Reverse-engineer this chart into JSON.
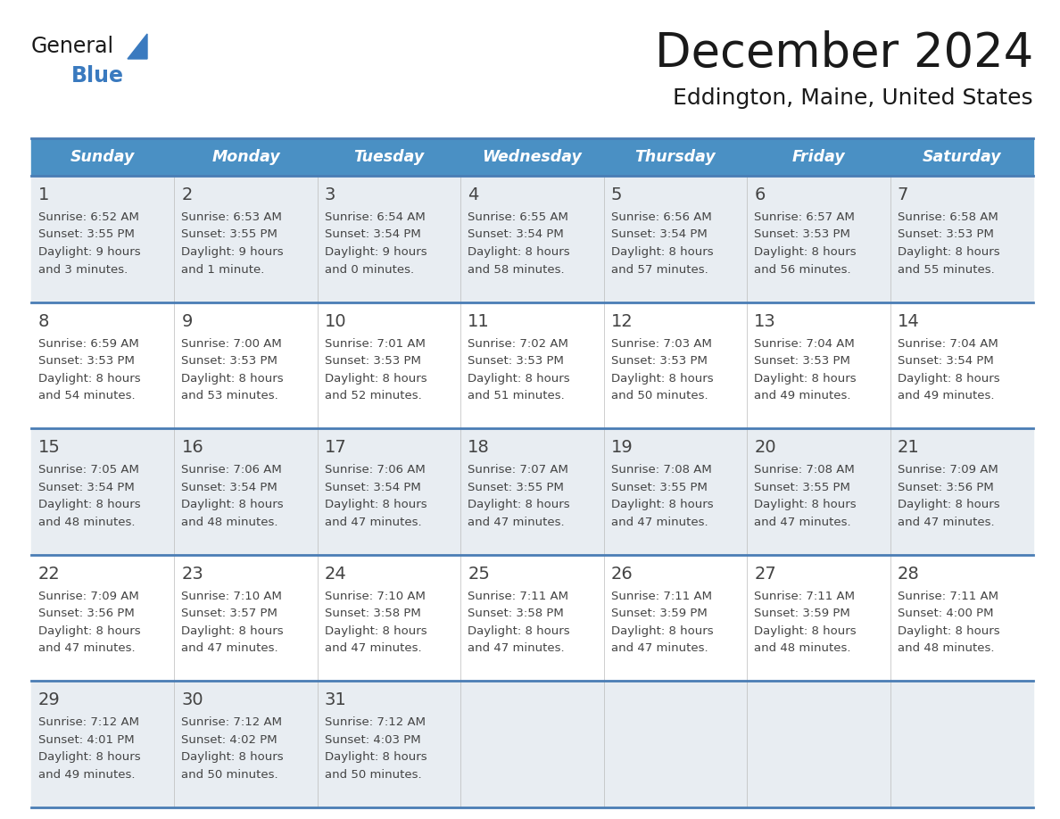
{
  "title": "December 2024",
  "subtitle": "Eddington, Maine, United States",
  "header_color": "#4A90C4",
  "header_text_color": "#FFFFFF",
  "day_names": [
    "Sunday",
    "Monday",
    "Tuesday",
    "Wednesday",
    "Thursday",
    "Friday",
    "Saturday"
  ],
  "grid_line_color": "#4A7DB5",
  "cell_bg_light": "#E8EDF2",
  "cell_bg_white": "#FFFFFF",
  "text_color": "#444444",
  "title_color": "#1a1a1a",
  "logo_color_general": "#1a1a1a",
  "logo_color_blue": "#3a7abf",
  "logo_triangle_color": "#3a7abf",
  "calendar_data": [
    [
      {
        "day": 1,
        "sunrise": "6:52 AM",
        "sunset": "3:55 PM",
        "daylight_line1": "9 hours",
        "daylight_line2": "and 3 minutes."
      },
      {
        "day": 2,
        "sunrise": "6:53 AM",
        "sunset": "3:55 PM",
        "daylight_line1": "9 hours",
        "daylight_line2": "and 1 minute."
      },
      {
        "day": 3,
        "sunrise": "6:54 AM",
        "sunset": "3:54 PM",
        "daylight_line1": "9 hours",
        "daylight_line2": "and 0 minutes."
      },
      {
        "day": 4,
        "sunrise": "6:55 AM",
        "sunset": "3:54 PM",
        "daylight_line1": "8 hours",
        "daylight_line2": "and 58 minutes."
      },
      {
        "day": 5,
        "sunrise": "6:56 AM",
        "sunset": "3:54 PM",
        "daylight_line1": "8 hours",
        "daylight_line2": "and 57 minutes."
      },
      {
        "day": 6,
        "sunrise": "6:57 AM",
        "sunset": "3:53 PM",
        "daylight_line1": "8 hours",
        "daylight_line2": "and 56 minutes."
      },
      {
        "day": 7,
        "sunrise": "6:58 AM",
        "sunset": "3:53 PM",
        "daylight_line1": "8 hours",
        "daylight_line2": "and 55 minutes."
      }
    ],
    [
      {
        "day": 8,
        "sunrise": "6:59 AM",
        "sunset": "3:53 PM",
        "daylight_line1": "8 hours",
        "daylight_line2": "and 54 minutes."
      },
      {
        "day": 9,
        "sunrise": "7:00 AM",
        "sunset": "3:53 PM",
        "daylight_line1": "8 hours",
        "daylight_line2": "and 53 minutes."
      },
      {
        "day": 10,
        "sunrise": "7:01 AM",
        "sunset": "3:53 PM",
        "daylight_line1": "8 hours",
        "daylight_line2": "and 52 minutes."
      },
      {
        "day": 11,
        "sunrise": "7:02 AM",
        "sunset": "3:53 PM",
        "daylight_line1": "8 hours",
        "daylight_line2": "and 51 minutes."
      },
      {
        "day": 12,
        "sunrise": "7:03 AM",
        "sunset": "3:53 PM",
        "daylight_line1": "8 hours",
        "daylight_line2": "and 50 minutes."
      },
      {
        "day": 13,
        "sunrise": "7:04 AM",
        "sunset": "3:53 PM",
        "daylight_line1": "8 hours",
        "daylight_line2": "and 49 minutes."
      },
      {
        "day": 14,
        "sunrise": "7:04 AM",
        "sunset": "3:54 PM",
        "daylight_line1": "8 hours",
        "daylight_line2": "and 49 minutes."
      }
    ],
    [
      {
        "day": 15,
        "sunrise": "7:05 AM",
        "sunset": "3:54 PM",
        "daylight_line1": "8 hours",
        "daylight_line2": "and 48 minutes."
      },
      {
        "day": 16,
        "sunrise": "7:06 AM",
        "sunset": "3:54 PM",
        "daylight_line1": "8 hours",
        "daylight_line2": "and 48 minutes."
      },
      {
        "day": 17,
        "sunrise": "7:06 AM",
        "sunset": "3:54 PM",
        "daylight_line1": "8 hours",
        "daylight_line2": "and 47 minutes."
      },
      {
        "day": 18,
        "sunrise": "7:07 AM",
        "sunset": "3:55 PM",
        "daylight_line1": "8 hours",
        "daylight_line2": "and 47 minutes."
      },
      {
        "day": 19,
        "sunrise": "7:08 AM",
        "sunset": "3:55 PM",
        "daylight_line1": "8 hours",
        "daylight_line2": "and 47 minutes."
      },
      {
        "day": 20,
        "sunrise": "7:08 AM",
        "sunset": "3:55 PM",
        "daylight_line1": "8 hours",
        "daylight_line2": "and 47 minutes."
      },
      {
        "day": 21,
        "sunrise": "7:09 AM",
        "sunset": "3:56 PM",
        "daylight_line1": "8 hours",
        "daylight_line2": "and 47 minutes."
      }
    ],
    [
      {
        "day": 22,
        "sunrise": "7:09 AM",
        "sunset": "3:56 PM",
        "daylight_line1": "8 hours",
        "daylight_line2": "and 47 minutes."
      },
      {
        "day": 23,
        "sunrise": "7:10 AM",
        "sunset": "3:57 PM",
        "daylight_line1": "8 hours",
        "daylight_line2": "and 47 minutes."
      },
      {
        "day": 24,
        "sunrise": "7:10 AM",
        "sunset": "3:58 PM",
        "daylight_line1": "8 hours",
        "daylight_line2": "and 47 minutes."
      },
      {
        "day": 25,
        "sunrise": "7:11 AM",
        "sunset": "3:58 PM",
        "daylight_line1": "8 hours",
        "daylight_line2": "and 47 minutes."
      },
      {
        "day": 26,
        "sunrise": "7:11 AM",
        "sunset": "3:59 PM",
        "daylight_line1": "8 hours",
        "daylight_line2": "and 47 minutes."
      },
      {
        "day": 27,
        "sunrise": "7:11 AM",
        "sunset": "3:59 PM",
        "daylight_line1": "8 hours",
        "daylight_line2": "and 48 minutes."
      },
      {
        "day": 28,
        "sunrise": "7:11 AM",
        "sunset": "4:00 PM",
        "daylight_line1": "8 hours",
        "daylight_line2": "and 48 minutes."
      }
    ],
    [
      {
        "day": 29,
        "sunrise": "7:12 AM",
        "sunset": "4:01 PM",
        "daylight_line1": "8 hours",
        "daylight_line2": "and 49 minutes."
      },
      {
        "day": 30,
        "sunrise": "7:12 AM",
        "sunset": "4:02 PM",
        "daylight_line1": "8 hours",
        "daylight_line2": "and 50 minutes."
      },
      {
        "day": 31,
        "sunrise": "7:12 AM",
        "sunset": "4:03 PM",
        "daylight_line1": "8 hours",
        "daylight_line2": "and 50 minutes."
      },
      null,
      null,
      null,
      null
    ]
  ]
}
